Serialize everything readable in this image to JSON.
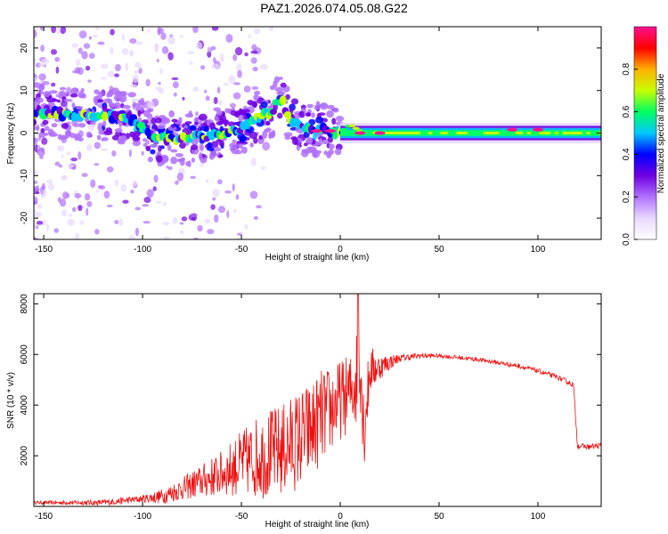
{
  "title": "PAZ1.2026.074.05.08.G22",
  "colorbar": {
    "label": "Normalized spectral amplitude",
    "ticks": [
      "0.0",
      "0.2",
      "0.4",
      "0.6",
      "0.8"
    ],
    "tick_values": [
      0.0,
      0.2,
      0.4,
      0.6,
      0.8
    ],
    "range": [
      0.0,
      1.0
    ],
    "colormap": [
      "#ffffff",
      "#e8d8ff",
      "#b070ff",
      "#7000e0",
      "#0000ff",
      "#00c8ff",
      "#00ff60",
      "#c8ff00",
      "#ffb000",
      "#ff0000",
      "#ff1090"
    ]
  },
  "chart_data": [
    {
      "type": "heatmap",
      "name": "spectrogram",
      "xlabel": "Height of straight line (km)",
      "ylabel": "Frequency (Hz)",
      "xlim": [
        -155,
        132
      ],
      "ylim": [
        -25,
        25
      ],
      "xticks": [
        -150,
        -100,
        -50,
        0,
        50,
        100
      ],
      "xtick_labels": [
        "-150",
        "-100",
        "-50",
        "0",
        "50",
        "100"
      ],
      "yticks": [
        -20,
        -10,
        0,
        10,
        20
      ],
      "ytick_labels": [
        "-20",
        "-10",
        "0",
        "10",
        "20"
      ],
      "centerline": {
        "x": [
          -155,
          -140,
          -120,
          -105,
          -95,
          -80,
          -65,
          -55,
          -45,
          -35,
          -30,
          -25,
          -20,
          -10,
          0,
          5,
          10,
          20,
          30,
          50,
          80,
          100,
          132
        ],
        "freq": [
          5,
          4.5,
          4,
          3.5,
          -1,
          -1.5,
          -0.5,
          0,
          3,
          5,
          8,
          3,
          1,
          1,
          0,
          2,
          0.5,
          0,
          0,
          0,
          0,
          0,
          0
        ]
      },
      "peaks": [
        {
          "x": -12,
          "freq": 0.5
        },
        {
          "x": -5,
          "freq": 0.5
        },
        {
          "x": 10,
          "freq": 0
        },
        {
          "x": 20,
          "freq": 0
        },
        {
          "x": 87,
          "freq": 0.8
        },
        {
          "x": 100,
          "freq": 0.8
        }
      ]
    },
    {
      "type": "line",
      "name": "snr",
      "xlabel": "Height of straight line (km)",
      "ylabel": "SNR (10 * v/v)",
      "xlim": [
        -155,
        132
      ],
      "ylim": [
        0,
        8400
      ],
      "xticks": [
        -150,
        -100,
        -50,
        0,
        50,
        100
      ],
      "xtick_labels": [
        "-150",
        "-100",
        "-50",
        "0",
        "50",
        "100"
      ],
      "yticks": [
        2000,
        4000,
        6000,
        8000
      ],
      "ytick_labels": [
        "2000",
        "4000",
        "6000",
        "8000"
      ],
      "color": "#ee1111",
      "envelope": {
        "x": [
          -155,
          -120,
          -100,
          -90,
          -80,
          -70,
          -60,
          -50,
          -40,
          -30,
          -20,
          -15,
          -10,
          -5,
          0,
          5,
          8,
          10,
          12,
          15,
          20,
          25,
          30,
          40,
          50,
          70,
          90,
          100,
          110,
          118,
          120,
          125,
          132
        ],
        "snr": [
          150,
          150,
          300,
          400,
          700,
          1000,
          1300,
          1700,
          2000,
          2200,
          2700,
          3000,
          3500,
          3800,
          4200,
          4500,
          5000,
          6200,
          3000,
          5400,
          5500,
          5700,
          5850,
          5950,
          5950,
          5800,
          5550,
          5350,
          5100,
          4800,
          2400,
          2350,
          2400
        ]
      },
      "noise_amplitude": {
        "x": [
          -155,
          -100,
          -80,
          -60,
          -40,
          -20,
          -10,
          0,
          5,
          10,
          15,
          20,
          30,
          50,
          120,
          132
        ],
        "amp": [
          60,
          150,
          450,
          900,
          1700,
          2000,
          1900,
          1600,
          1500,
          2200,
          1000,
          500,
          150,
          80,
          100,
          120
        ]
      },
      "spike": {
        "x": 9,
        "snr": 8400
      }
    }
  ]
}
